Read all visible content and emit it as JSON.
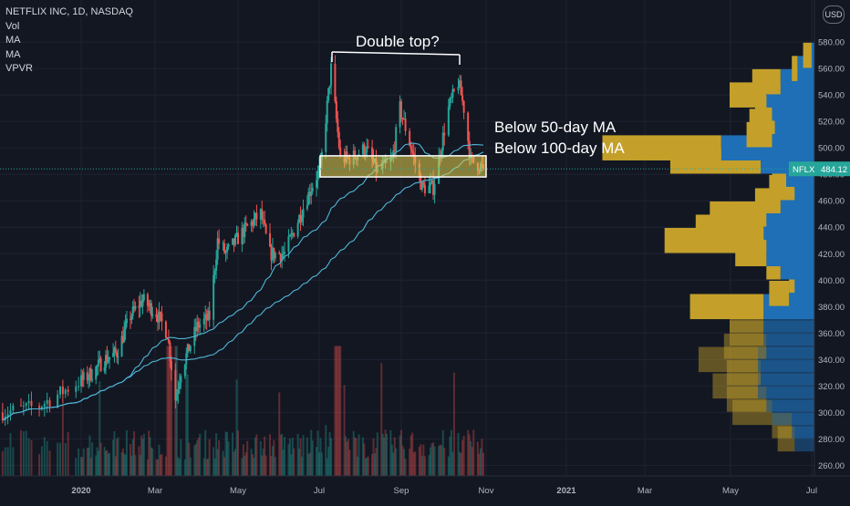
{
  "header": {
    "symbol_line": "NETFLIX INC, 1D, NASDAQ",
    "indicators": [
      "Vol",
      "MA",
      "MA",
      "VPVR"
    ],
    "currency": "USD"
  },
  "price_tag": {
    "symbol": "NFLX",
    "value": "484.12"
  },
  "annotations": {
    "double_top": "Double top?",
    "below_50": "Below 50-day MA",
    "below_100": "Below 100-day MA"
  },
  "colors": {
    "background": "#131722",
    "up": "#26a69a",
    "down": "#ef5350",
    "ma": "#4fb6d8",
    "highlight": "#e8d44d",
    "vp_up": "#1e6fb5",
    "vp_down": "#c4a02a",
    "axis_text": "#b2b5be",
    "annotation_text": "#ffffff",
    "price_tag": "#26a69a"
  },
  "chart_data": {
    "type": "candlestick",
    "title": "NETFLIX INC, 1D, NASDAQ",
    "x_tick_labels": [
      "2020",
      "Mar",
      "May",
      "Jul",
      "Sep",
      "Nov",
      "2021",
      "Mar",
      "May",
      "Jul"
    ],
    "y_tick_labels": [
      "260.00",
      "280.00",
      "300.00",
      "320.00",
      "340.00",
      "360.00",
      "380.00",
      "400.00",
      "420.00",
      "440.00",
      "460.00",
      "480.00",
      "500.00",
      "520.00",
      "540.00",
      "560.00",
      "580.00"
    ],
    "ylim": [
      252,
      598
    ],
    "grid": true,
    "close_path": [
      [
        "2019-12-02",
        300
      ],
      [
        "2019-12-16",
        305
      ],
      [
        "2019-12-31",
        323
      ],
      [
        "2020-01-10",
        330
      ],
      [
        "2020-01-20",
        340
      ],
      [
        "2020-01-30",
        345
      ],
      [
        "2020-02-10",
        373
      ],
      [
        "2020-02-20",
        385
      ],
      [
        "2020-03-02",
        375
      ],
      [
        "2020-03-10",
        360
      ],
      [
        "2020-03-16",
        310
      ],
      [
        "2020-03-20",
        332
      ],
      [
        "2020-04-01",
        365
      ],
      [
        "2020-04-10",
        372
      ],
      [
        "2020-04-16",
        430
      ],
      [
        "2020-04-22",
        420
      ],
      [
        "2020-05-05",
        437
      ],
      [
        "2020-05-18",
        450
      ],
      [
        "2020-05-25",
        420
      ],
      [
        "2020-06-05",
        420
      ],
      [
        "2020-06-15",
        445
      ],
      [
        "2020-06-25",
        470
      ],
      [
        "2020-07-02",
        485
      ],
      [
        "2020-07-10",
        560
      ],
      [
        "2020-07-17",
        492
      ],
      [
        "2020-07-25",
        492
      ],
      [
        "2020-08-05",
        500
      ],
      [
        "2020-08-14",
        482
      ],
      [
        "2020-08-25",
        490
      ],
      [
        "2020-08-31",
        530
      ],
      [
        "2020-09-08",
        500
      ],
      [
        "2020-09-16",
        470
      ],
      [
        "2020-09-24",
        470
      ],
      [
        "2020-10-05",
        530
      ],
      [
        "2020-10-12",
        550
      ],
      [
        "2020-10-16",
        530
      ],
      [
        "2020-10-21",
        490
      ],
      [
        "2020-10-26",
        488
      ],
      [
        "2020-10-30",
        484
      ]
    ],
    "price_volatility": 6,
    "volume_profile": [
      {
        "price": 280,
        "up": 14,
        "down": 12
      },
      {
        "price": 290,
        "up": 16,
        "down": 14
      },
      {
        "price": 300,
        "up": 30,
        "down": 28
      },
      {
        "price": 310,
        "up": 34,
        "down": 28
      },
      {
        "price": 320,
        "up": 40,
        "down": 32
      },
      {
        "price": 330,
        "up": 38,
        "down": 24
      },
      {
        "price": 340,
        "up": 40,
        "down": 42
      },
      {
        "price": 350,
        "up": 34,
        "down": 30
      },
      {
        "price": 360,
        "up": 36,
        "down": 24
      },
      {
        "price": 370,
        "up": 36,
        "down": 24
      },
      {
        "price": 380,
        "up": 36,
        "down": 52
      },
      {
        "price": 390,
        "up": 18,
        "down": 14
      },
      {
        "price": 400,
        "up": 14,
        "down": 4
      },
      {
        "price": 410,
        "up": 24,
        "down": 10
      },
      {
        "price": 420,
        "up": 34,
        "down": 22
      },
      {
        "price": 430,
        "up": 34,
        "down": 72
      },
      {
        "price": 440,
        "up": 36,
        "down": 48
      },
      {
        "price": 450,
        "up": 34,
        "down": 40
      },
      {
        "price": 460,
        "up": 24,
        "down": 18
      },
      {
        "price": 470,
        "up": 14,
        "down": 18
      },
      {
        "price": 480,
        "up": 20,
        "down": 10
      },
      {
        "price": 490,
        "up": 38,
        "down": 64
      },
      {
        "price": 500,
        "up": 66,
        "down": 84
      },
      {
        "price": 510,
        "up": 30,
        "down": 18
      },
      {
        "price": 520,
        "up": 28,
        "down": 18
      },
      {
        "price": 530,
        "up": 30,
        "down": 12
      },
      {
        "price": 540,
        "up": 34,
        "down": 26
      },
      {
        "price": 550,
        "up": 24,
        "down": 20
      },
      {
        "price": 560,
        "up": 12,
        "down": 4
      },
      {
        "price": 570,
        "up": 2,
        "down": 6
      }
    ]
  }
}
